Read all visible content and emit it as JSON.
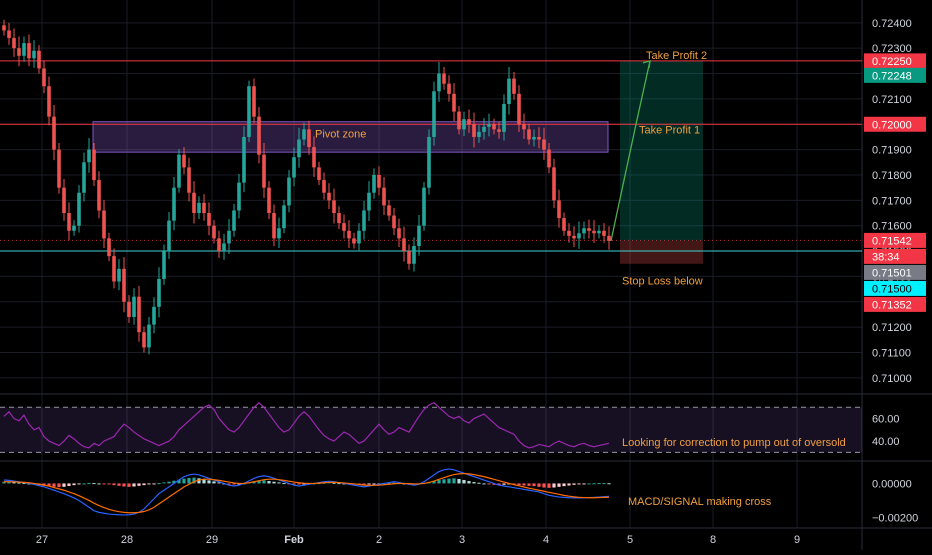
{
  "chart_data": [
    {
      "type": "candlestick",
      "title": "",
      "price_axis": {
        "range": [
          0.7096,
          0.7249
        ],
        "ticks": [
          0.724,
          0.723,
          0.722,
          0.721,
          0.72,
          0.719,
          0.718,
          0.717,
          0.716,
          0.715,
          0.714,
          0.713,
          0.712,
          0.711,
          0.71
        ],
        "tick_labels": [
          "0.72400",
          "0.72300",
          "0.72200",
          "0.72100",
          "0.72000",
          "0.71900",
          "0.71800",
          "0.71700",
          "0.71600",
          "0.71500",
          "0.71400",
          "0.71300",
          "0.71200",
          "0.71100",
          "0.71000"
        ]
      },
      "time_axis": {
        "labels": [
          "27",
          "28",
          "29",
          "Feb",
          "2",
          "3",
          "4",
          "5",
          "8",
          "9"
        ]
      },
      "closes": [
        0.7237,
        0.7234,
        0.723,
        0.7227,
        0.7232,
        0.7226,
        0.7229,
        0.7222,
        0.7215,
        0.7203,
        0.719,
        0.7175,
        0.7165,
        0.7158,
        0.716,
        0.7173,
        0.7185,
        0.719,
        0.7178,
        0.7166,
        0.7155,
        0.7148,
        0.7138,
        0.7143,
        0.713,
        0.7124,
        0.7132,
        0.7118,
        0.7112,
        0.7121,
        0.7128,
        0.7139,
        0.715,
        0.7162,
        0.7175,
        0.7188,
        0.7183,
        0.7173,
        0.7165,
        0.7169,
        0.7165,
        0.716,
        0.7155,
        0.715,
        0.7153,
        0.7158,
        0.7166,
        0.7177,
        0.7195,
        0.7215,
        0.7203,
        0.7188,
        0.7175,
        0.7165,
        0.7155,
        0.7159,
        0.7168,
        0.7179,
        0.7187,
        0.7194,
        0.7198,
        0.7191,
        0.7183,
        0.7178,
        0.7173,
        0.717,
        0.7165,
        0.7161,
        0.7158,
        0.7155,
        0.7153,
        0.7158,
        0.7166,
        0.7173,
        0.718,
        0.7175,
        0.7168,
        0.7164,
        0.7159,
        0.7155,
        0.715,
        0.7145,
        0.7152,
        0.716,
        0.7175,
        0.7195,
        0.7213,
        0.722,
        0.7216,
        0.7212,
        0.7205,
        0.7198,
        0.7202,
        0.72,
        0.7195,
        0.7197,
        0.7199,
        0.72,
        0.7198,
        0.7197,
        0.7208,
        0.7218,
        0.7212,
        0.72,
        0.7198,
        0.7194,
        0.7195,
        0.7194,
        0.719,
        0.7183,
        0.717,
        0.7163,
        0.7158,
        0.7156,
        0.7155,
        0.7157,
        0.7159,
        0.7158,
        0.7157,
        0.7158,
        0.7156,
        0.7154
      ],
      "trade_setup": {
        "annotations": [
          "Pivot zone",
          "Take Profit 2",
          "Take Profit 1",
          "Stop Loss below"
        ],
        "pivot_zone": [
          0.7189,
          0.7201
        ],
        "take_profit_1": 0.72,
        "take_profit_2": 0.7225,
        "entry": 0.7154,
        "stop_loss": 0.7145
      },
      "levels": [
        {
          "price": 0.7225,
          "color": "#f23645"
        },
        {
          "price": 0.72,
          "color": "#f23645"
        },
        {
          "price": 0.715,
          "color": "#3fd0d4"
        },
        {
          "price": 0.71542,
          "color": "#f23645"
        }
      ],
      "price_labels": [
        {
          "text": "0.72250",
          "price": 0.7225,
          "bg": "#f23645",
          "fg": "#ffffff"
        },
        {
          "text": "0.72248",
          "price": 0.72248,
          "bg": "#089981",
          "fg": "#ffffff"
        },
        {
          "text": "0.72000",
          "price": 0.72,
          "bg": "#f23645",
          "fg": "#ffffff"
        },
        {
          "text": "0.71542",
          "price": 0.71542,
          "bg": "#f23645",
          "fg": "#ffffff"
        },
        {
          "text": "38:34",
          "price": 0.71525,
          "bg": "#f23645",
          "fg": "#ffffff"
        },
        {
          "text": "0.71501",
          "price": 0.71501,
          "bg": "#787b86",
          "fg": "#ffffff"
        },
        {
          "text": "0.71500",
          "price": 0.715,
          "bg": "#00f0ff",
          "fg": "#000000"
        },
        {
          "text": "0.71352",
          "price": 0.71352,
          "bg": "#f23645",
          "fg": "#ffffff"
        }
      ],
      "colors": {
        "up": "#26a69a",
        "down": "#ef5350",
        "pivot_zone": "#7e57c2",
        "target": "#089981"
      }
    },
    {
      "type": "line",
      "indicator": "RSI",
      "ylim": [
        25,
        80
      ],
      "ticks": [
        60,
        40
      ],
      "tick_labels": [
        "60.00",
        "40.00"
      ],
      "bands": [
        70,
        30
      ],
      "annotation": "Looking for correction to pump out of oversold",
      "values": [
        62,
        66,
        60,
        58,
        63,
        55,
        50,
        52,
        44,
        40,
        38,
        36,
        40,
        45,
        42,
        38,
        35,
        34,
        38,
        36,
        40,
        42,
        44,
        50,
        55,
        52,
        48,
        45,
        42,
        40,
        38,
        36,
        38,
        40,
        44,
        50,
        54,
        58,
        62,
        66,
        70,
        72,
        68,
        60,
        55,
        50,
        48,
        52,
        58,
        64,
        70,
        74,
        70,
        64,
        58,
        52,
        48,
        50,
        56,
        62,
        66,
        62,
        56,
        50,
        45,
        42,
        40,
        44,
        48,
        46,
        42,
        38,
        40,
        45,
        50,
        55,
        50,
        46,
        48,
        52,
        50,
        48,
        55,
        62,
        68,
        72,
        74,
        70,
        66,
        62,
        60,
        62,
        58,
        56,
        60,
        62,
        64,
        60,
        56,
        52,
        50,
        48,
        46,
        40,
        36,
        34,
        35,
        37,
        36,
        35,
        38,
        40,
        38,
        36,
        35,
        37,
        38,
        36,
        35,
        36,
        37,
        38
      ]
    },
    {
      "type": "histogram",
      "indicator": "MACD",
      "ylim": [
        -0.0025,
        0.0012
      ],
      "ticks": [
        0,
        -0.002
      ],
      "tick_labels": [
        "0.00000",
        "−0.00200"
      ],
      "annotation": "MACD/SIGNAL making cross",
      "histogram": [
        0.0001,
        0.0001,
        8e-05,
        5e-05,
        3e-05,
        0.0,
        -5e-05,
        -0.0001,
        -0.00014,
        -0.00018,
        -0.0002,
        -0.00022,
        -0.0002,
        -0.00015,
        -0.0001,
        -5e-05,
        0.0,
        3e-05,
        2e-05,
        0.0,
        -3e-05,
        -6e-05,
        -0.0001,
        -0.00014,
        -0.00018,
        -0.0002,
        -0.00018,
        -0.00014,
        -0.0001,
        -6e-05,
        -2e-05,
        2e-05,
        6e-05,
        0.0001,
        0.00016,
        0.00022,
        0.00028,
        0.00032,
        0.00034,
        0.0003,
        0.00024,
        0.00018,
        0.00012,
        6e-05,
        0.0,
        -4e-05,
        -6e-05,
        -4e-05,
        0.0,
        6e-05,
        0.00012,
        0.00016,
        0.00018,
        0.00014,
        0.0001,
        6e-05,
        2e-05,
        -2e-05,
        -4e-05,
        -6e-05,
        -4e-05,
        -2e-05,
        0.0,
        2e-05,
        4e-05,
        6e-05,
        4e-05,
        2e-05,
        0.0,
        -2e-05,
        -4e-05,
        -6e-05,
        -8e-05,
        -6e-05,
        -4e-05,
        -2e-05,
        0.0,
        2e-05,
        4e-05,
        2e-05,
        0.0,
        -2e-05,
        -4e-05,
        -2e-05,
        2e-05,
        8e-05,
        0.00014,
        0.0002,
        0.00024,
        0.00028,
        0.0003,
        0.00026,
        0.0002,
        0.00014,
        8e-05,
        4e-05,
        0.0,
        -4e-05,
        -8e-05,
        -0.0001,
        -8e-05,
        -6e-05,
        -8e-05,
        -0.0001,
        -0.00012,
        -0.00014,
        -0.00016,
        -0.0002,
        -0.00024,
        -0.00026,
        -0.00024,
        -0.0002,
        -0.00016,
        -0.00012,
        -8e-05,
        -4e-05,
        -2e-05,
        0.0,
        1e-05,
        2e-05,
        2e-05,
        1e-05
      ],
      "macd": [
        0.0002,
        0.00018,
        0.00014,
        0.0001,
        5e-05,
        0.0,
        -6e-05,
        -0.00013,
        -0.0002,
        -0.0003,
        -0.0004,
        -0.0005,
        -0.0006,
        -0.00072,
        -0.00085,
        -0.001,
        -0.0012,
        -0.0014,
        -0.0016,
        -0.0017,
        -0.00175,
        -0.0018,
        -0.00182,
        -0.00184,
        -0.00185,
        -0.00184,
        -0.0018,
        -0.0017,
        -0.0015,
        -0.0012,
        -0.0009,
        -0.0006,
        -0.0004,
        -0.0002,
        0.0,
        0.0002,
        0.0004,
        0.0005,
        0.00055,
        0.0005,
        0.0004,
        0.0003,
        0.0002,
        0.0001,
        0.0,
        -0.0001,
        -0.00015,
        -0.0001,
        0.0,
        0.00015,
        0.0003,
        0.0004,
        0.00045,
        0.0004,
        0.0003,
        0.0002,
        0.0001,
        0.0,
        -0.0001,
        -0.00015,
        -0.0001,
        -5e-05,
        0.0,
        5e-05,
        0.0001,
        0.00012,
        0.0001,
        5e-05,
        0.0,
        -5e-05,
        -0.0001,
        -0.00015,
        -0.0002,
        -0.00015,
        -0.0001,
        -5e-05,
        0.0,
        5e-05,
        0.0001,
        5e-05,
        0.0,
        -5e-05,
        -0.0001,
        -5e-05,
        0.0001,
        0.0003,
        0.0005,
        0.0007,
        0.0008,
        0.00085,
        0.0008,
        0.0007,
        0.0006,
        0.0005,
        0.0004,
        0.0003,
        0.0002,
        0.0001,
        0.0,
        -0.0001,
        -0.00015,
        -0.0002,
        -0.00025,
        -0.0003,
        -0.00035,
        -0.0004,
        -0.00045,
        -0.0005,
        -0.0006,
        -0.0007,
        -0.00075,
        -0.0008,
        -0.00082,
        -0.00084,
        -0.00085,
        -0.00085,
        -0.00084,
        -0.00083,
        -0.00082,
        -0.0008,
        -0.00078,
        -0.00076
      ],
      "signal": [
        0.0001,
        0.0001,
        9e-05,
        8e-05,
        6e-05,
        4e-05,
        0.0,
        -4e-05,
        -0.0001,
        -0.00016,
        -0.00024,
        -0.00032,
        -0.0004,
        -0.0005,
        -0.0006,
        -0.00072,
        -0.00086,
        -0.001,
        -0.00116,
        -0.0013,
        -0.00142,
        -0.00152,
        -0.0016,
        -0.00166,
        -0.0017,
        -0.00172,
        -0.00172,
        -0.0017,
        -0.00165,
        -0.00155,
        -0.0014,
        -0.0012,
        -0.001,
        -0.0008,
        -0.0006,
        -0.0004,
        -0.0002,
        -5e-05,
        0.0001,
        0.0002,
        0.00025,
        0.00025,
        0.00022,
        0.00018,
        0.00013,
        8e-05,
        3e-05,
        0.0,
        0.0,
        4e-05,
        0.0001,
        0.00016,
        0.00022,
        0.00025,
        0.00025,
        0.00022,
        0.00018,
        0.00013,
        8e-05,
        4e-05,
        1e-05,
        0.0,
        0.0,
        2e-05,
        4e-05,
        6e-05,
        6e-05,
        5e-05,
        3e-05,
        0.0,
        -3e-05,
        -6e-05,
        -0.0001,
        -0.00011,
        -0.00011,
        -0.0001,
        -8e-05,
        -5e-05,
        -2e-05,
        0.0,
        0.0,
        -1e-05,
        -3e-05,
        -3e-05,
        0.0,
        6e-05,
        0.00014,
        0.00024,
        0.00034,
        0.00044,
        0.00052,
        0.00056,
        0.00058,
        0.00056,
        0.00052,
        0.00046,
        0.0004,
        0.00032,
        0.00024,
        0.00016,
        8e-05,
        0.0,
        -7e-05,
        -0.00014,
        -0.00021,
        -0.00028,
        -0.00034,
        -0.0004,
        -0.00046,
        -0.00052,
        -0.00058,
        -0.00064,
        -0.0007,
        -0.00075,
        -0.00079,
        -0.00082,
        -0.00083,
        -0.00084,
        -0.00084,
        -0.00083,
        -0.00082,
        -0.00081
      ]
    }
  ]
}
